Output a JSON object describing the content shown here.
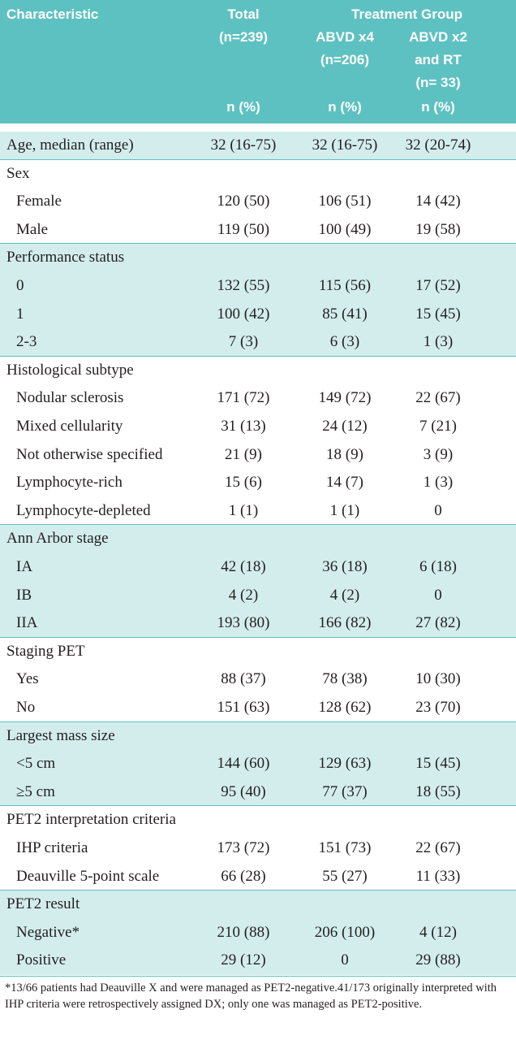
{
  "header": {
    "characteristic": "Characteristic",
    "total": [
      "Total",
      "(n=239)"
    ],
    "treatment_group": "Treatment Group",
    "abvd_x4": [
      "ABVD x4",
      "(n=206)"
    ],
    "abvd_x2": [
      "ABVD x2",
      "and RT",
      "(n= 33)"
    ],
    "units": [
      "n (%)",
      "n (%)",
      "n (%)"
    ]
  },
  "groups": [
    {
      "heading": [
        "Age, median (range)",
        "32 (16-75)",
        "32 (16-75)",
        "32 (20-74)"
      ],
      "rows": []
    },
    {
      "heading": [
        "Sex"
      ],
      "rows": [
        [
          "Female",
          "120 (50)",
          "106 (51)",
          "14 (42)"
        ],
        [
          "Male",
          "119 (50)",
          "100 (49)",
          "19 (58)"
        ]
      ]
    },
    {
      "heading": [
        "Performance status"
      ],
      "rows": [
        [
          "0",
          "132 (55)",
          "115 (56)",
          "17 (52)"
        ],
        [
          "1",
          "100 (42)",
          "85 (41)",
          "15 (45)"
        ],
        [
          "2-3",
          "7 (3)",
          "6 (3)",
          "1 (3)"
        ]
      ]
    },
    {
      "heading": [
        "Histological subtype"
      ],
      "rows": [
        [
          "Nodular sclerosis",
          "171 (72)",
          "149 (72)",
          "22 (67)"
        ],
        [
          "Mixed cellularity",
          "31 (13)",
          "24 (12)",
          "7 (21)"
        ],
        [
          "Not otherwise specified",
          "21 (9)",
          "18 (9)",
          "3 (9)"
        ],
        [
          "Lymphocyte-rich",
          "15 (6)",
          "14 (7)",
          "1 (3)"
        ],
        [
          "Lymphocyte-depleted",
          "1 (1)",
          "1 (1)",
          "0"
        ]
      ]
    },
    {
      "heading": [
        "Ann Arbor stage"
      ],
      "rows": [
        [
          "IA",
          "42 (18)",
          "36 (18)",
          "6 (18)"
        ],
        [
          "IB",
          "4 (2)",
          "4 (2)",
          "0"
        ],
        [
          "IIA",
          "193 (80)",
          "166 (82)",
          "27 (82)"
        ]
      ]
    },
    {
      "heading": [
        "Staging PET"
      ],
      "rows": [
        [
          "Yes",
          "88 (37)",
          "78 (38)",
          "10 (30)"
        ],
        [
          "No",
          "151 (63)",
          "128 (62)",
          "23 (70)"
        ]
      ]
    },
    {
      "heading": [
        "Largest mass size"
      ],
      "rows": [
        [
          "<5 cm",
          "144 (60)",
          "129 (63)",
          "15 (45)"
        ],
        [
          "≥5 cm",
          "95 (40)",
          "77 (37)",
          "18 (55)"
        ]
      ]
    },
    {
      "heading": [
        "PET2 interpretation criteria"
      ],
      "rows": [
        [
          "IHP criteria",
          "173 (72)",
          "151 (73)",
          "22 (67)"
        ],
        [
          "Deauville 5-point scale",
          "66 (28)",
          "55 (27)",
          "11 (33)"
        ]
      ]
    },
    {
      "heading": [
        "PET2 result"
      ],
      "rows": [
        [
          "Negative*",
          "210 (88)",
          "206 (100)",
          "4 (12)"
        ],
        [
          "Positive",
          "29 (12)",
          "0",
          "29 (88)"
        ]
      ]
    }
  ],
  "footnote": "*13/66 patients had Deauville X and were managed as PET2-negative.41/173 originally interpreted with IHP criteria were retrospectively assigned DX; only one was managed as PET2-positive."
}
